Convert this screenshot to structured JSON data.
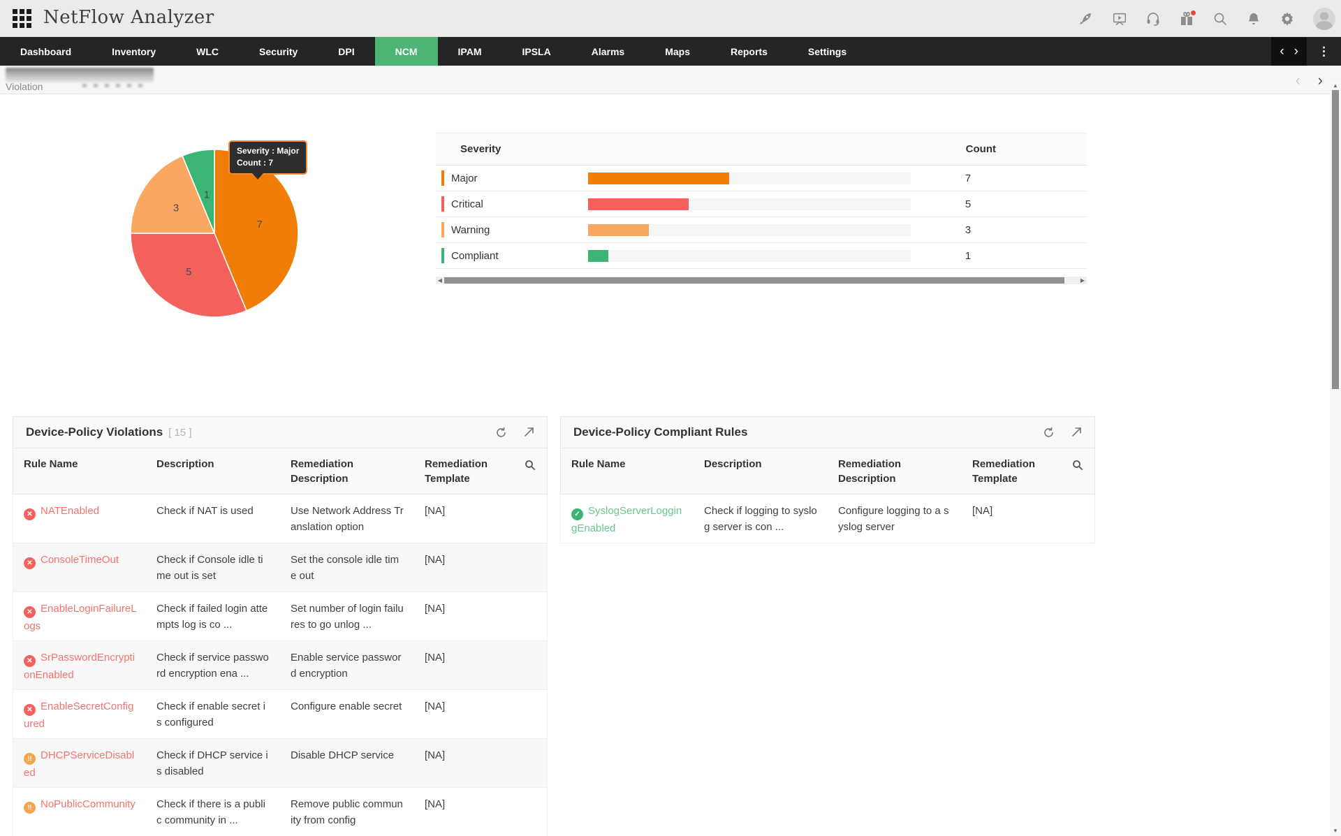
{
  "app": {
    "title": "NetFlow Analyzer"
  },
  "header_icons": [
    {
      "name": "rocket-icon"
    },
    {
      "name": "demo-player-icon"
    },
    {
      "name": "support-headset-icon"
    },
    {
      "name": "whats-new-gift-icon",
      "badge": true
    },
    {
      "name": "search-icon"
    },
    {
      "name": "notifications-bell-icon"
    },
    {
      "name": "settings-gear-icon"
    },
    {
      "name": "user-avatar"
    }
  ],
  "nav": {
    "tabs": [
      {
        "label": "Dashboard",
        "active": false
      },
      {
        "label": "Inventory",
        "active": false
      },
      {
        "label": "WLC",
        "active": false
      },
      {
        "label": "Security",
        "active": false
      },
      {
        "label": "DPI",
        "active": false
      },
      {
        "label": "NCM",
        "active": true
      },
      {
        "label": "IPAM",
        "active": false
      },
      {
        "label": "IPSLA",
        "active": false
      },
      {
        "label": "Alarms",
        "active": false
      },
      {
        "label": "Maps",
        "active": false
      },
      {
        "label": "Reports",
        "active": false
      },
      {
        "label": "Settings",
        "active": false
      }
    ],
    "active_color": "#4cb474"
  },
  "breadcrumb": {
    "page": "Violation",
    "prev": "‹",
    "next": "›"
  },
  "chart_data": [
    {
      "type": "pie",
      "labels": [
        "Major",
        "Critical",
        "Warning",
        "Compliant"
      ],
      "values": [
        7,
        5,
        3,
        1
      ],
      "colors": [
        "#ef7d06",
        "#f4615c",
        "#f9a763",
        "#3cb475"
      ],
      "total": 16,
      "start_angle_deg": 0,
      "direction": "clockwise",
      "data_labels": "values-inside",
      "tooltip": {
        "line1": "Severity : Major",
        "line2": "Count : 7"
      }
    },
    {
      "type": "bar",
      "orientation": "horizontal",
      "categories": [
        "Major",
        "Critical",
        "Warning",
        "Compliant"
      ],
      "values": [
        7,
        5,
        3,
        1
      ],
      "colors": [
        "#ef7d06",
        "#f4615c",
        "#f9a763",
        "#3cb475"
      ],
      "title": "Severity",
      "xlabel": "Count",
      "ylabel": "Severity",
      "xlim": [
        0,
        16
      ],
      "grid": false
    }
  ],
  "tooltip": {
    "line1": "Severity : Major",
    "line2": "Count : 7"
  },
  "severity_table": {
    "headers": {
      "severity": "Severity",
      "count": "Count"
    },
    "rows": [
      {
        "label": "Major",
        "count": "7",
        "percent": 43.75,
        "color": "#ef7d06"
      },
      {
        "label": "Critical",
        "count": "5",
        "percent": 31.25,
        "color": "#f4615c"
      },
      {
        "label": "Warning",
        "count": "3",
        "percent": 18.75,
        "color": "#f9a763"
      },
      {
        "label": "Compliant",
        "count": "1",
        "percent": 6.25,
        "color": "#3cb475"
      }
    ]
  },
  "panels": {
    "violations": {
      "title": "Device-Policy Violations",
      "count_badge": "[ 15 ]",
      "columns": [
        "Rule Name",
        "Description",
        "Remediation Description",
        "Remediation Template"
      ],
      "rows": [
        {
          "icon": "✕",
          "icon_color": "#f4615c",
          "link_color": "#f4736f",
          "name": "NATEnabled",
          "desc": "Check if NAT is used",
          "rem": "Use Network Address Translation option",
          "tmpl": "[NA]"
        },
        {
          "icon": "✕",
          "icon_color": "#f4615c",
          "link_color": "#f4736f",
          "name": "ConsoleTimeOut",
          "desc": "Check if Console idle time out is set",
          "rem": "Set the console idle time out",
          "tmpl": "[NA]"
        },
        {
          "icon": "✕",
          "icon_color": "#f4615c",
          "link_color": "#f4736f",
          "name": "EnableLoginFailureLogs",
          "desc": "Check if failed login attempts log is co ...",
          "rem": "Set number of login failures to go unlog ...",
          "tmpl": "[NA]"
        },
        {
          "icon": "✕",
          "icon_color": "#f4615c",
          "link_color": "#f4736f",
          "name": "SrPasswordEncryptionEnabled",
          "desc": "Check if service password encryption ena ...",
          "rem": "Enable service password encryption",
          "tmpl": "[NA]"
        },
        {
          "icon": "✕",
          "icon_color": "#f4615c",
          "link_color": "#f4736f",
          "name": "EnableSecretConfigured",
          "desc": "Check if enable secret is configured",
          "rem": "Configure enable secret",
          "tmpl": "[NA]"
        },
        {
          "icon": "!!",
          "icon_color": "#f2a74e",
          "link_color": "#f4736f",
          "name": "DHCPServiceDisabled",
          "desc": "Check if DHCP service is disabled",
          "rem": "Disable DHCP service",
          "tmpl": "[NA]"
        },
        {
          "icon": "!!",
          "icon_color": "#f2a74e",
          "link_color": "#f4736f",
          "name": "NoPublicCommunity",
          "desc": "Check if there is a public community in ...",
          "rem": "Remove public community from config",
          "tmpl": "[NA]"
        }
      ]
    },
    "compliant": {
      "title": "Device-Policy Compliant Rules",
      "count_badge": "",
      "columns": [
        "Rule Name",
        "Description",
        "Remediation Description",
        "Remediation Template"
      ],
      "rows": [
        {
          "icon": "✓",
          "icon_color": "#3cb475",
          "link_color": "#6ac492",
          "name": "SyslogServerLoggingEnabled",
          "desc": "Check if logging to syslog server is con ...",
          "rem": "Configure logging to a syslog server",
          "tmpl": "[NA]"
        }
      ]
    }
  }
}
